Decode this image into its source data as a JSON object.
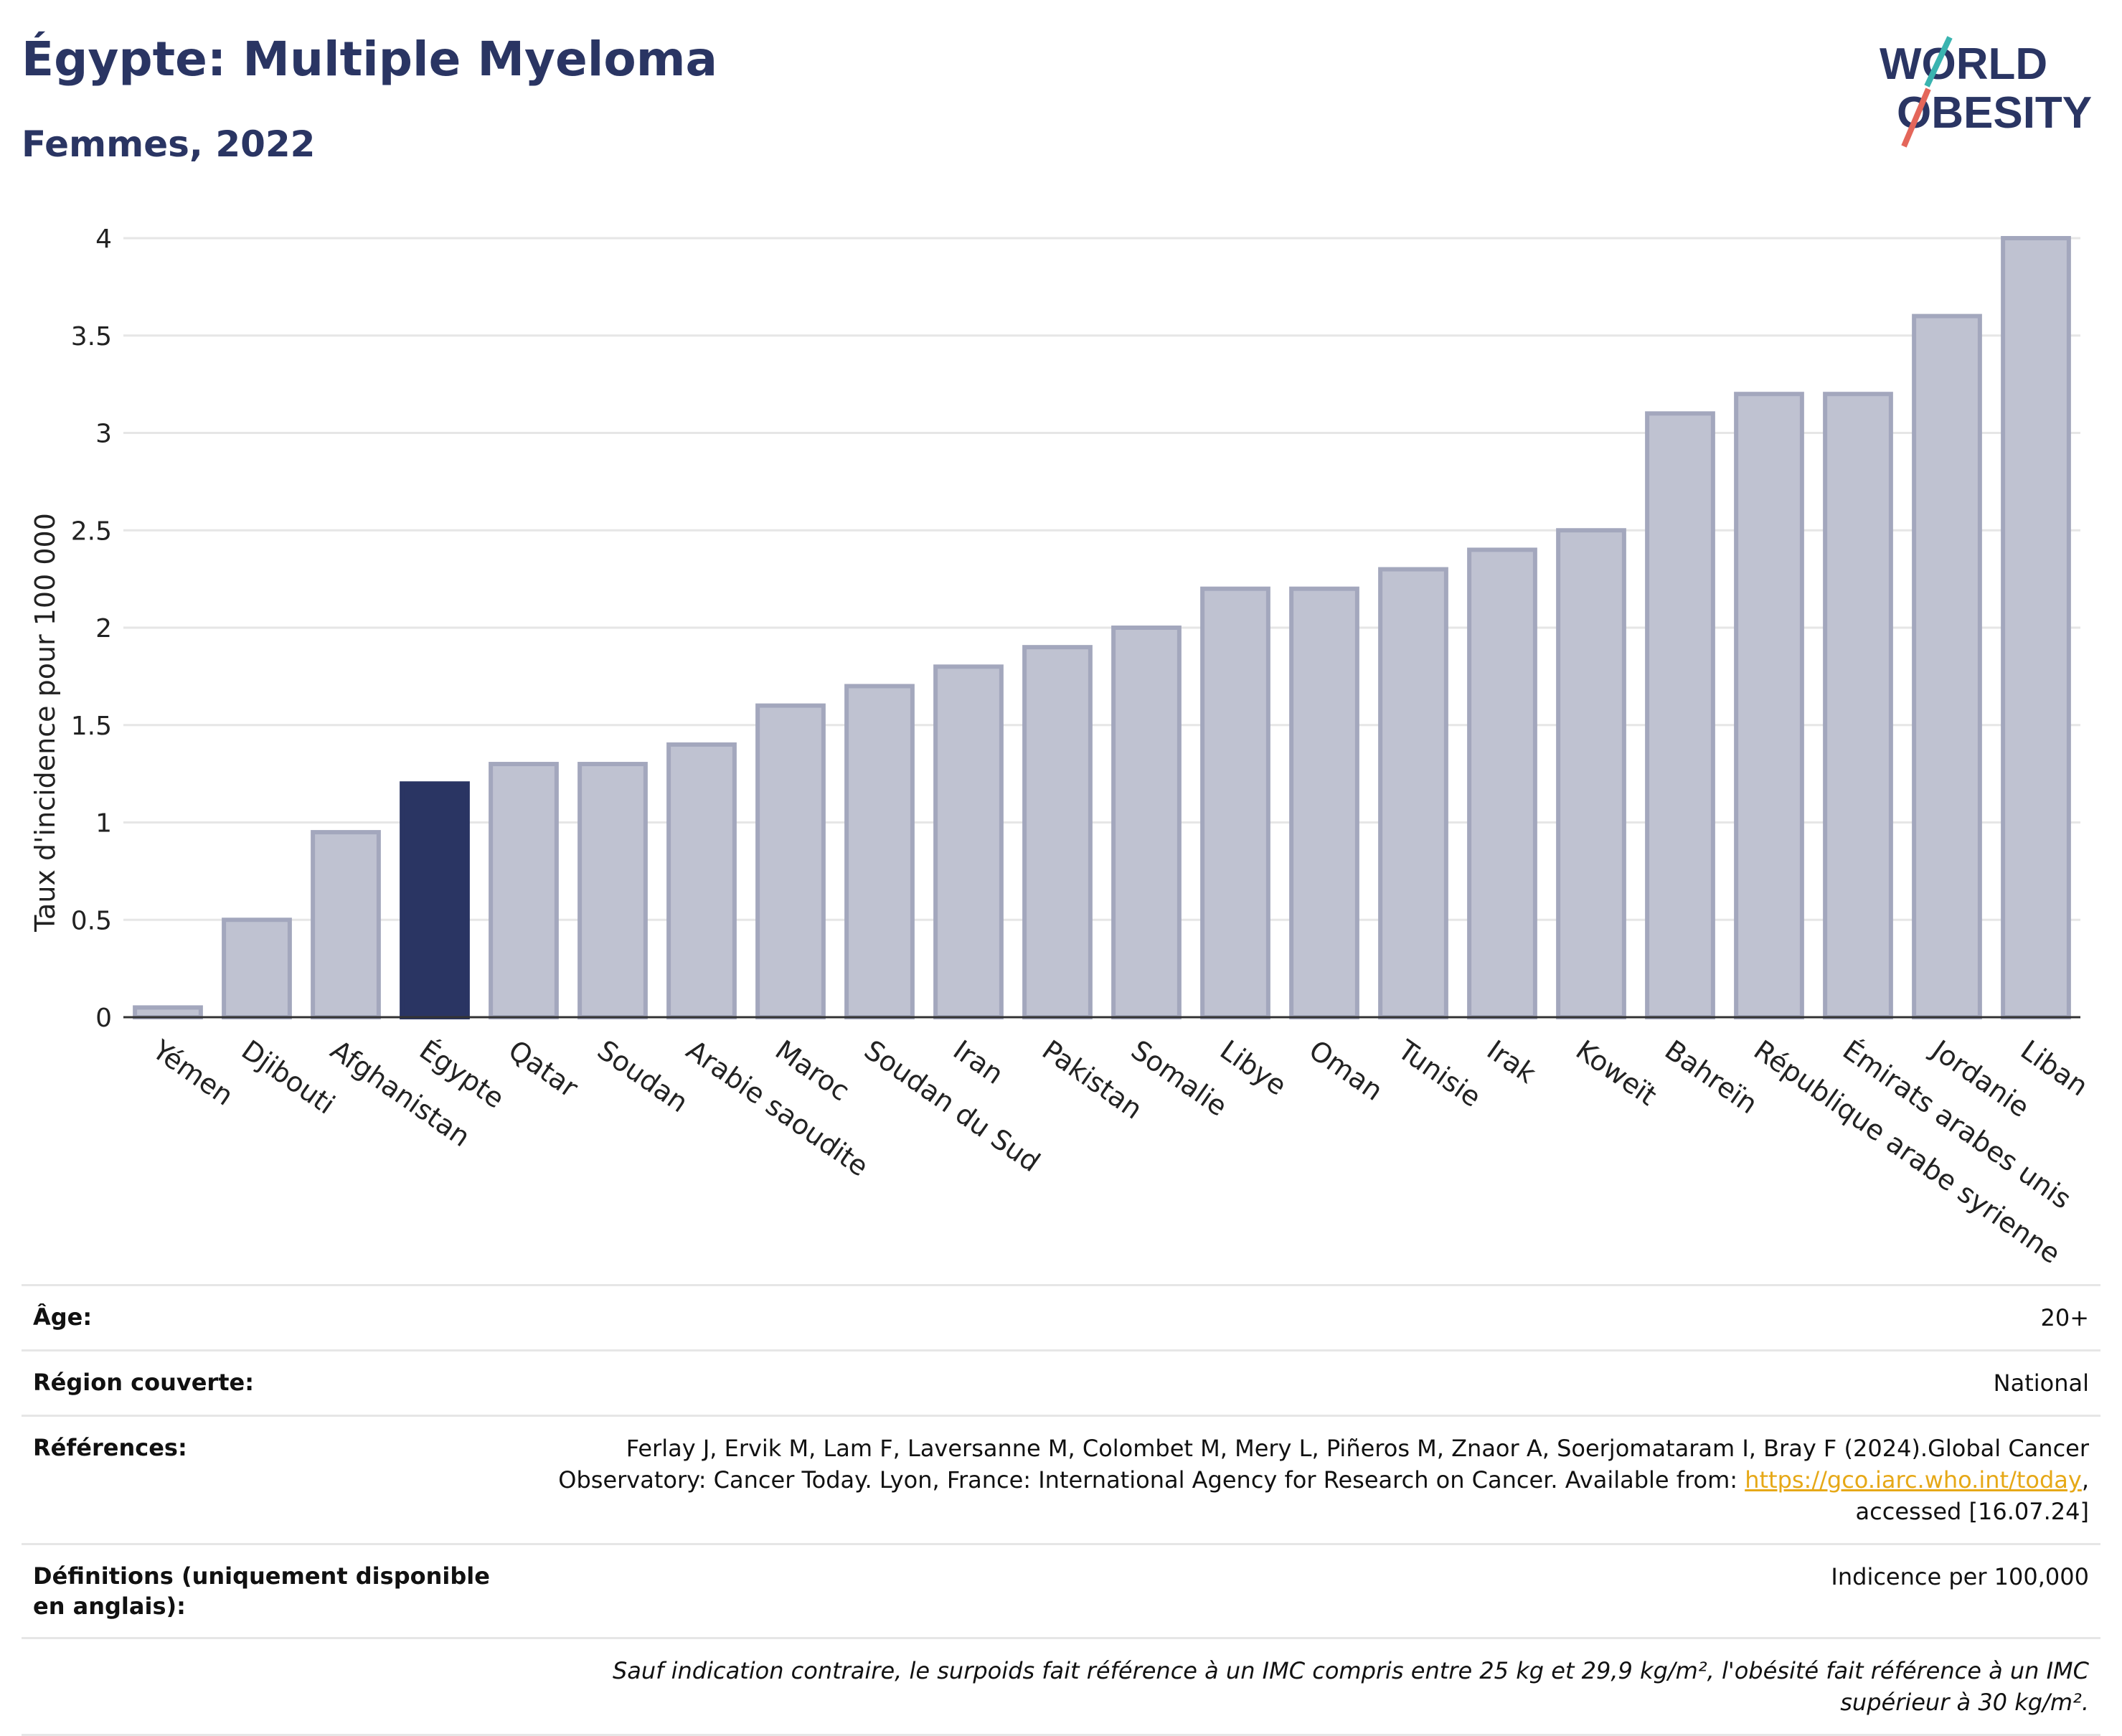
{
  "header": {
    "title": "Égypte: Multiple Myeloma",
    "subtitle": "Femmes, 2022",
    "logo_line1": "WORLD",
    "logo_line2": "OBESITY"
  },
  "colors": {
    "highlight": "#2a3563",
    "bar": "#bfc2d1",
    "bar_stroke": "#a3a7bd",
    "title": "#2a3563",
    "link": "#e6a817",
    "logo_teal": "#3ab4b0",
    "logo_red": "#e4665a"
  },
  "chart_data": {
    "type": "bar",
    "ylabel": "Taux d'incidence pour 100 000",
    "xlabel": "",
    "ylim": [
      0,
      4
    ],
    "yticks": [
      0,
      0.5,
      1,
      1.5,
      2,
      2.5,
      3,
      3.5,
      4
    ],
    "ytick_labels": [
      "0",
      "0.5",
      "1",
      "1.5",
      "2",
      "2.5",
      "3",
      "3.5",
      "4"
    ],
    "grid": true,
    "highlight_category": "Égypte",
    "categories": [
      "Yémen",
      "Djibouti",
      "Afghanistan",
      "Égypte",
      "Qatar",
      "Soudan",
      "Arabie saoudite",
      "Maroc",
      "Soudan du Sud",
      "Iran",
      "Pakistan",
      "Somalie",
      "Libye",
      "Oman",
      "Tunisie",
      "Irak",
      "Koweït",
      "Bahreïn",
      "République arabe syrienne",
      "Émirats arabes unis",
      "Jordanie",
      "Liban"
    ],
    "values": [
      0.05,
      0.5,
      0.95,
      1.2,
      1.3,
      1.3,
      1.4,
      1.6,
      1.7,
      1.8,
      1.9,
      2.0,
      2.2,
      2.2,
      2.3,
      2.4,
      2.5,
      3.1,
      3.2,
      3.2,
      3.6,
      4.0
    ]
  },
  "meta": {
    "age_label": "Âge:",
    "age_value": "20+",
    "region_label": "Région couverte:",
    "region_value": "National",
    "ref_label": "Références:",
    "ref_text_1": "Ferlay J, Ervik M, Lam F, Laversanne M, Colombet M, Mery L, Piñeros M, Znaor A, Soerjomataram I, Bray F (2024).Global Cancer Observatory: Cancer Today. Lyon, France: International Agency for Research on Cancer. Available from: ",
    "ref_link": "https://gco.iarc.who.int/today",
    "ref_text_2": ", accessed [16.07.24]",
    "def_label": "Définitions (uniquement disponible en anglais):",
    "def_value": "Indicence per 100,000",
    "note": "Sauf indication contraire, le surpoids fait référence à un IMC compris entre 25 kg et 29,9 kg/m², l'obésité fait référence à un IMC supérieur à 30 kg/m²."
  }
}
